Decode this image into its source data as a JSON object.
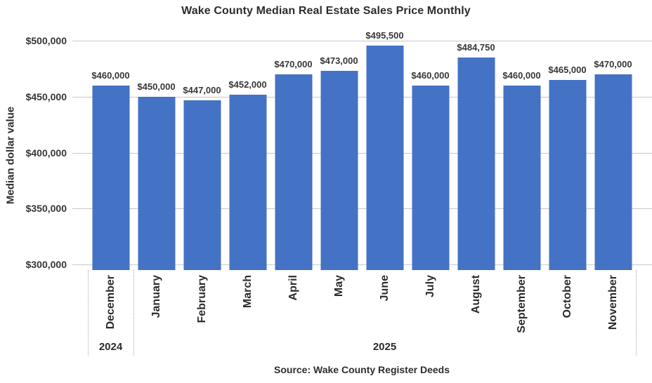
{
  "title": "Wake County Median Real Estate Sales Price Monthly",
  "y_axis_label": "Median dollar value",
  "source": "Source: Wake County Register Deeds",
  "colors": {
    "bar": "#4472C4",
    "gridline": "#C8C8C8",
    "separator": "#ABABAB",
    "text": "#363636"
  },
  "chart_data": {
    "type": "bar",
    "title": "Wake County Median Real Estate Sales Price Monthly",
    "xlabel": "",
    "ylabel": "Median dollar value",
    "categories": [
      "December",
      "January",
      "February",
      "March",
      "April",
      "May",
      "June",
      "July",
      "August",
      "September",
      "October",
      "November"
    ],
    "values": [
      460000,
      450000,
      447000,
      452000,
      470000,
      473000,
      495500,
      460000,
      484750,
      460000,
      465000,
      470000
    ],
    "value_labels": [
      "$460,000",
      "$450,000",
      "$447,000",
      "$452,000",
      "$470,000",
      "$473,000",
      "$495,500",
      "$460,000",
      "$484,750",
      "$460,000",
      "$465,000",
      "$470,000"
    ],
    "yticks": [
      {
        "value": 500000,
        "label": "$500,000"
      },
      {
        "value": 450000,
        "label": "$450,000"
      },
      {
        "value": 400000,
        "label": "$400,000"
      },
      {
        "value": 350000,
        "label": "$350,000"
      },
      {
        "value": 300000,
        "label": "$300,000"
      }
    ],
    "ylim": [
      295000,
      500000
    ],
    "grid": "horizontal",
    "legend": "none",
    "bar_color": "#4472C4",
    "year_groups": [
      {
        "label": "2024",
        "span": 1
      },
      {
        "label": "2025",
        "span": 11
      }
    ]
  }
}
